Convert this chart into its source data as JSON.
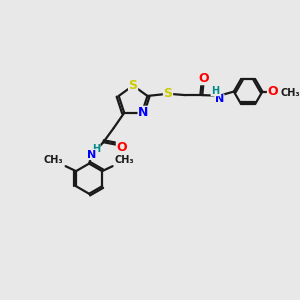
{
  "bg_color": "#e8e8e8",
  "atom_colors": {
    "S": "#cccc00",
    "N": "#0000ff",
    "O": "#ff0000",
    "C": "#1a1a1a",
    "H": "#008b8b"
  },
  "bond_color": "#1a1a1a",
  "bond_width": 1.6,
  "fig_size": [
    3.0,
    3.0
  ],
  "dpi": 100,
  "xlim": [
    0,
    10
  ],
  "ylim": [
    0,
    10
  ]
}
